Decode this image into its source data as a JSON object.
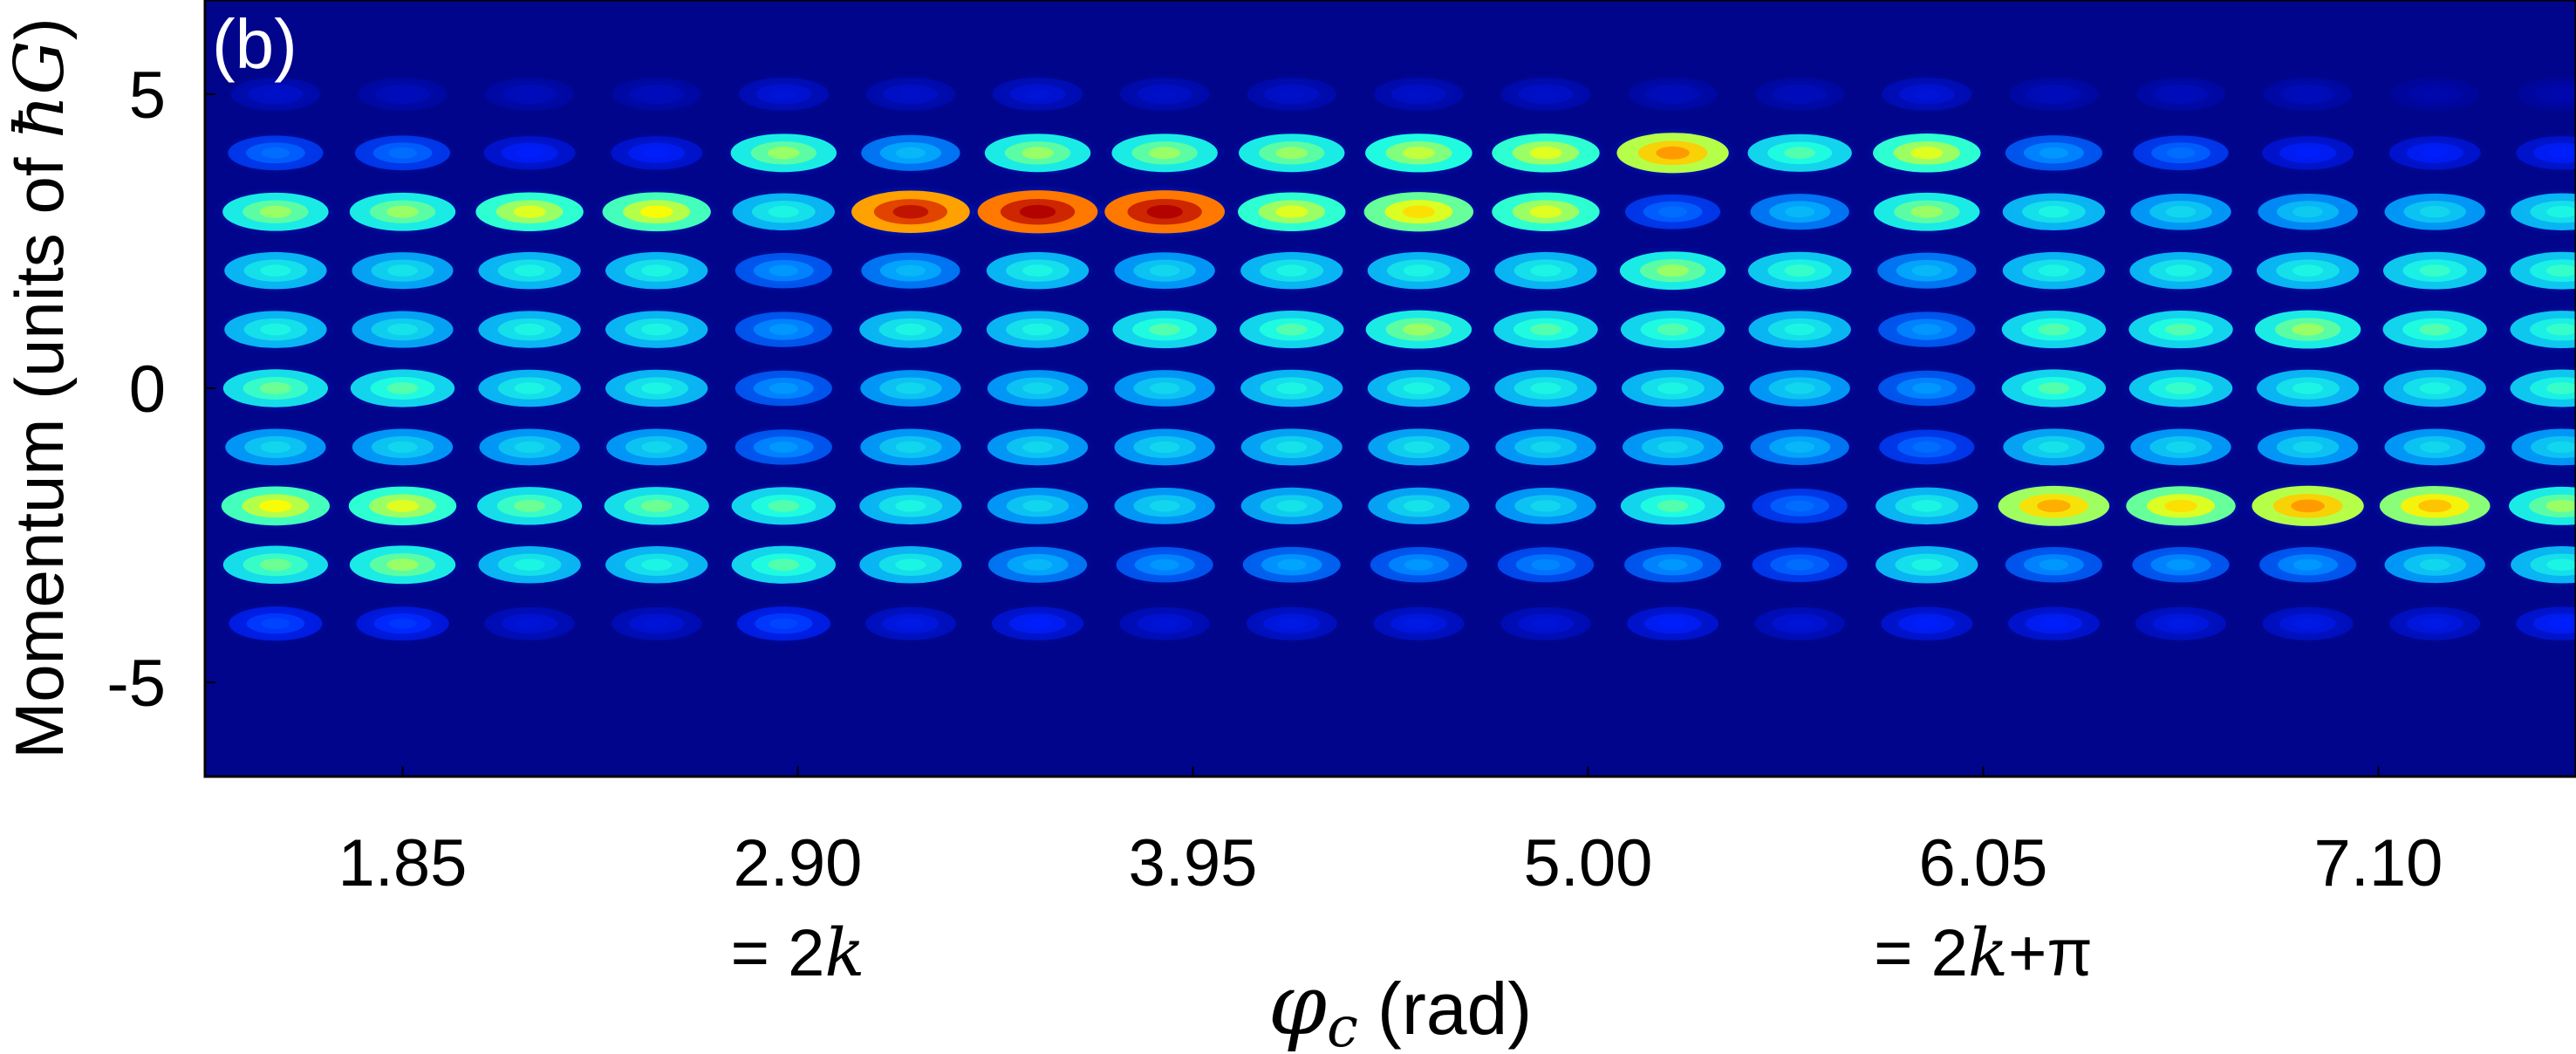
{
  "chart_data": {
    "type": "heatmap",
    "panel_label": "(b)",
    "xlabel": {
      "symbol": "φ",
      "subscript": "c",
      "unit": "(rad)"
    },
    "ylabel": {
      "prefix": "Momentum (units of ",
      "symbol": "ħG",
      "suffix": ")"
    },
    "x_tick_labels": [
      "1.85",
      "2.90",
      "3.95",
      "5.00",
      "6.05",
      "7.10"
    ],
    "x_ticks": [
      1.85,
      2.9,
      3.95,
      5.0,
      6.05,
      7.1
    ],
    "x_annotations": [
      {
        "x": 2.9,
        "prefix": "= 2",
        "var": "k",
        "suffix": ""
      },
      {
        "x": 6.05,
        "prefix": "= 2",
        "var": "k",
        "suffix": "+π"
      }
    ],
    "y_tick_labels": [
      "5",
      "0",
      "-5"
    ],
    "y_ticks": [
      5,
      0,
      -5
    ],
    "xlim": [
      1.325,
      7.625
    ],
    "ylim": [
      -6.6,
      6.6
    ],
    "colormap": [
      "#00008f",
      "#0020ff",
      "#00a0ff",
      "#20ffdf",
      "#ffff00",
      "#ff6000",
      "#b00000"
    ],
    "background_color": "#01058c",
    "x_columns": [
      1.5125,
      1.85,
      2.1875,
      2.525,
      2.8625,
      3.2,
      3.5375,
      3.875,
      4.2125,
      4.55,
      4.8875,
      5.225,
      5.5625,
      5.9,
      6.2375,
      6.575,
      6.9125,
      7.25,
      7.5875
    ],
    "momentum_orders": [
      5,
      4,
      3,
      2,
      1,
      0,
      -1,
      -2,
      -3,
      -4
    ],
    "intensity": [
      [
        0.08,
        0.06,
        0.06,
        0.06,
        0.1,
        0.08,
        0.1,
        0.08,
        0.08,
        0.08,
        0.08,
        0.06,
        0.06,
        0.1,
        0.06,
        0.06,
        0.06,
        0.04,
        0.04
      ],
      [
        0.25,
        0.25,
        0.15,
        0.15,
        0.55,
        0.35,
        0.55,
        0.55,
        0.55,
        0.58,
        0.6,
        0.72,
        0.5,
        0.6,
        0.3,
        0.25,
        0.15,
        0.15,
        0.15
      ],
      [
        0.55,
        0.55,
        0.6,
        0.62,
        0.45,
        0.9,
        0.95,
        0.95,
        0.6,
        0.65,
        0.6,
        0.25,
        0.35,
        0.55,
        0.45,
        0.4,
        0.38,
        0.4,
        0.45
      ],
      [
        0.45,
        0.42,
        0.45,
        0.45,
        0.3,
        0.35,
        0.45,
        0.4,
        0.45,
        0.45,
        0.45,
        0.55,
        0.48,
        0.35,
        0.45,
        0.45,
        0.45,
        0.48,
        0.48
      ],
      [
        0.45,
        0.42,
        0.45,
        0.45,
        0.3,
        0.45,
        0.45,
        0.5,
        0.5,
        0.55,
        0.5,
        0.5,
        0.45,
        0.3,
        0.5,
        0.5,
        0.55,
        0.5,
        0.48
      ],
      [
        0.52,
        0.5,
        0.45,
        0.45,
        0.3,
        0.4,
        0.4,
        0.4,
        0.45,
        0.45,
        0.45,
        0.45,
        0.4,
        0.3,
        0.5,
        0.48,
        0.45,
        0.45,
        0.48
      ],
      [
        0.4,
        0.4,
        0.4,
        0.4,
        0.3,
        0.4,
        0.4,
        0.4,
        0.42,
        0.42,
        0.4,
        0.4,
        0.35,
        0.25,
        0.42,
        0.4,
        0.4,
        0.4,
        0.4
      ],
      [
        0.62,
        0.6,
        0.52,
        0.52,
        0.5,
        0.45,
        0.4,
        0.4,
        0.42,
        0.42,
        0.4,
        0.5,
        0.25,
        0.45,
        0.7,
        0.65,
        0.72,
        0.68,
        0.55
      ],
      [
        0.52,
        0.55,
        0.45,
        0.45,
        0.5,
        0.45,
        0.35,
        0.3,
        0.32,
        0.3,
        0.28,
        0.3,
        0.25,
        0.45,
        0.3,
        0.3,
        0.3,
        0.4,
        0.45
      ],
      [
        0.2,
        0.18,
        0.1,
        0.1,
        0.2,
        0.12,
        0.15,
        0.1,
        0.12,
        0.12,
        0.1,
        0.15,
        0.1,
        0.15,
        0.15,
        0.12,
        0.12,
        0.12,
        0.15
      ]
    ]
  }
}
